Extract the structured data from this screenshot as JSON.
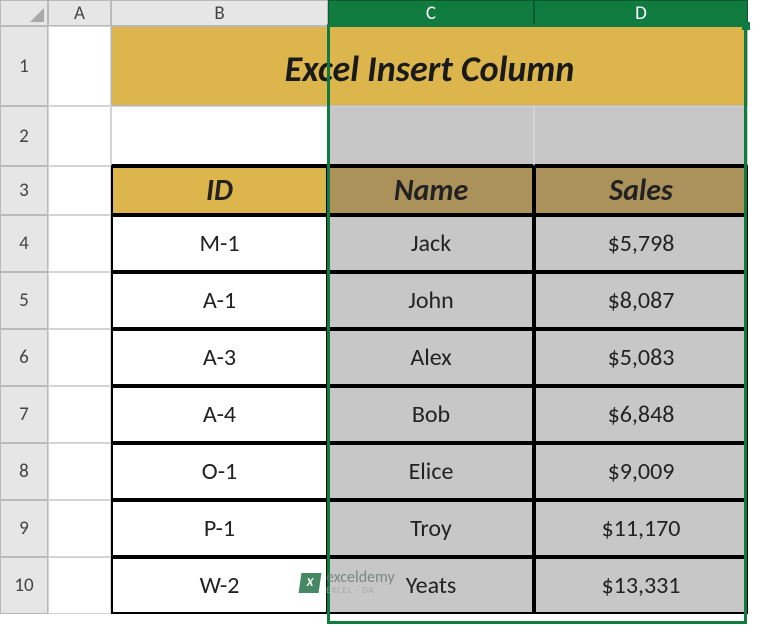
{
  "columns": {
    "A": "A",
    "B": "B",
    "C": "C",
    "D": "D"
  },
  "rows": {
    "r1": "1",
    "r2": "2",
    "r3": "3",
    "r4": "4",
    "r5": "5",
    "r6": "6",
    "r7": "7",
    "r8": "8",
    "r9": "9",
    "r10": "10"
  },
  "title": "Excel Insert Column",
  "headers": {
    "id": "ID",
    "name": "Name",
    "sales": "Sales"
  },
  "data": [
    {
      "id": "M-1",
      "name": "Jack",
      "sales": "$5,798"
    },
    {
      "id": "A-1",
      "name": "John",
      "sales": "$8,087"
    },
    {
      "id": "A-3",
      "name": "Alex",
      "sales": "$5,083"
    },
    {
      "id": "A-4",
      "name": "Bob",
      "sales": "$6,848"
    },
    {
      "id": "O-1",
      "name": "Elice",
      "sales": "$9,009"
    },
    {
      "id": "P-1",
      "name": "Troy",
      "sales": "$11,170"
    },
    {
      "id": "W-2",
      "name": "Yeats",
      "sales": "$13,331"
    }
  ],
  "selection": {
    "selected_columns": [
      "C",
      "D"
    ],
    "selected_header_bg": "#0f7b3f",
    "selection_border_color": "#0f7b3f"
  },
  "colors": {
    "title_bg": "#dcb64d",
    "header_bg": "#dcb64d",
    "header_bg_selected": "#ab925a",
    "cell_sel_bg": "#c7c7c7",
    "grid_line": "#d4d4d4",
    "data_border": "#000000"
  },
  "watermark": {
    "brand": "exceldemy",
    "tagline": "EXCEL · DA"
  }
}
